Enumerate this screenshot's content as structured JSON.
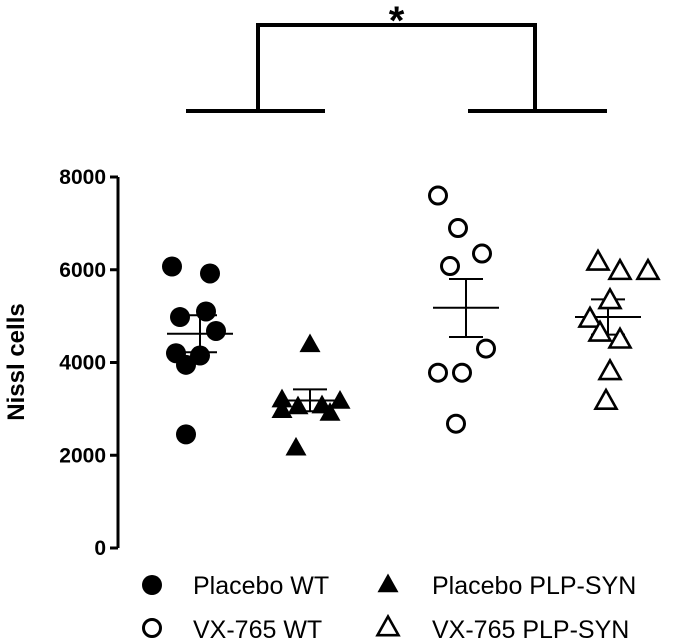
{
  "chart_data": {
    "type": "scatter",
    "ylabel": "Nissl cells",
    "ylim": [
      0,
      8000
    ],
    "yticks": [
      "0",
      "2000",
      "4000",
      "6000",
      "8000"
    ],
    "grid": false,
    "legend_position": "bottom",
    "significance": {
      "label": "*",
      "between": [
        "Placebo",
        "VX-765"
      ]
    },
    "series": [
      {
        "name": "Placebo WT",
        "marker": "filled-circle",
        "values": [
          6070,
          5920,
          5100,
          4980,
          4680,
          4200,
          4150,
          3950,
          2450
        ],
        "mean": 4620,
        "sem_upper": 5020,
        "sem_lower": 4220
      },
      {
        "name": "Placebo PLP-SYN",
        "marker": "filled-triangle",
        "values": [
          4400,
          3210,
          3180,
          3080,
          3060,
          2980,
          2920,
          2170
        ],
        "mean": 3180,
        "sem_upper": 3420,
        "sem_lower": 2950
      },
      {
        "name": "VX-765 WT",
        "marker": "open-circle",
        "values": [
          7600,
          6900,
          6350,
          6080,
          4300,
          3780,
          3780,
          2680
        ],
        "mean": 5180,
        "sem_upper": 5800,
        "sem_lower": 4550
      },
      {
        "name": "VX-765 PLP-SYN",
        "marker": "open-triangle",
        "values": [
          6180,
          5980,
          5980,
          5350,
          4950,
          4650,
          4500,
          3820,
          3180
        ],
        "mean": 4980,
        "sem_upper": 5360,
        "sem_lower": 4600
      }
    ]
  }
}
